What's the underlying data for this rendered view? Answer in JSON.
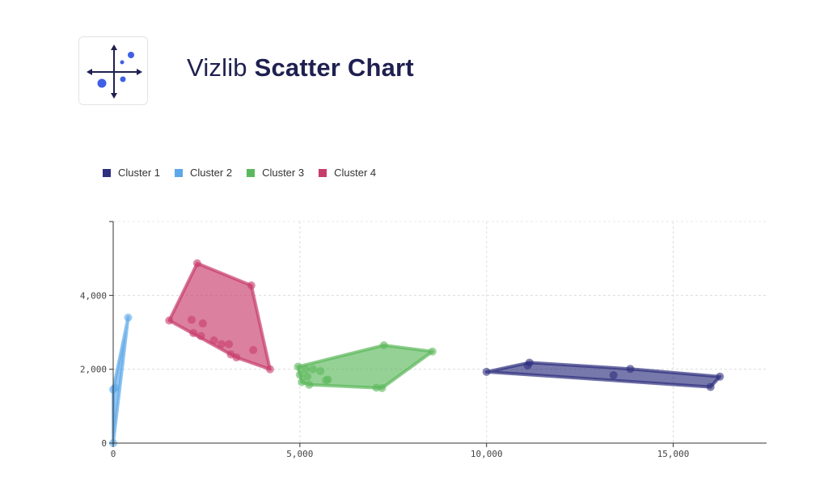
{
  "header": {
    "brand": "Vizlib",
    "product": "Scatter Chart",
    "logo_icon": "scatter-axes-icon"
  },
  "chart_data": {
    "type": "scatter",
    "title": "",
    "xlabel": "",
    "ylabel": "",
    "xlim": [
      0,
      17500
    ],
    "ylim": [
      0,
      6000
    ],
    "x_ticks": [
      0,
      5000,
      10000,
      15000
    ],
    "y_ticks": [
      0,
      2000,
      4000
    ],
    "x_tick_labels": [
      "0",
      "5,000",
      "10,000",
      "15,000"
    ],
    "y_tick_labels": [
      "0",
      "2,000",
      "4,000"
    ],
    "grid": true,
    "legend_position": "top-left",
    "convex_hulls": true,
    "series": [
      {
        "name": "Cluster 1",
        "color": "#2e2f7e",
        "points": [
          [
            10000,
            1930
          ],
          [
            11100,
            2100
          ],
          [
            11150,
            2180
          ],
          [
            13400,
            1840
          ],
          [
            13850,
            2010
          ],
          [
            16000,
            1520
          ],
          [
            16250,
            1800
          ]
        ]
      },
      {
        "name": "Cluster 2",
        "color": "#5ca8e8",
        "points": [
          [
            0,
            0
          ],
          [
            0,
            1450
          ],
          [
            50,
            1500
          ],
          [
            400,
            3400
          ]
        ]
      },
      {
        "name": "Cluster 3",
        "color": "#5cb85c",
        "points": [
          [
            4950,
            2070
          ],
          [
            5000,
            1850
          ],
          [
            5050,
            1650
          ],
          [
            5150,
            2000
          ],
          [
            5200,
            1800
          ],
          [
            5250,
            1580
          ],
          [
            5350,
            2000
          ],
          [
            5550,
            1950
          ],
          [
            5700,
            1700
          ],
          [
            5750,
            1720
          ],
          [
            7050,
            1500
          ],
          [
            7200,
            1490
          ],
          [
            7250,
            2650
          ],
          [
            8550,
            2480
          ]
        ]
      },
      {
        "name": "Cluster 4",
        "color": "#c83c6a",
        "points": [
          [
            1500,
            3320
          ],
          [
            2100,
            3340
          ],
          [
            2150,
            2980
          ],
          [
            2250,
            4870
          ],
          [
            2350,
            2900
          ],
          [
            2400,
            3240
          ],
          [
            2700,
            2780
          ],
          [
            2900,
            2680
          ],
          [
            3100,
            2680
          ],
          [
            3150,
            2400
          ],
          [
            3300,
            2320
          ],
          [
            3700,
            4270
          ],
          [
            3750,
            2520
          ],
          [
            4200,
            2000
          ]
        ]
      }
    ]
  }
}
